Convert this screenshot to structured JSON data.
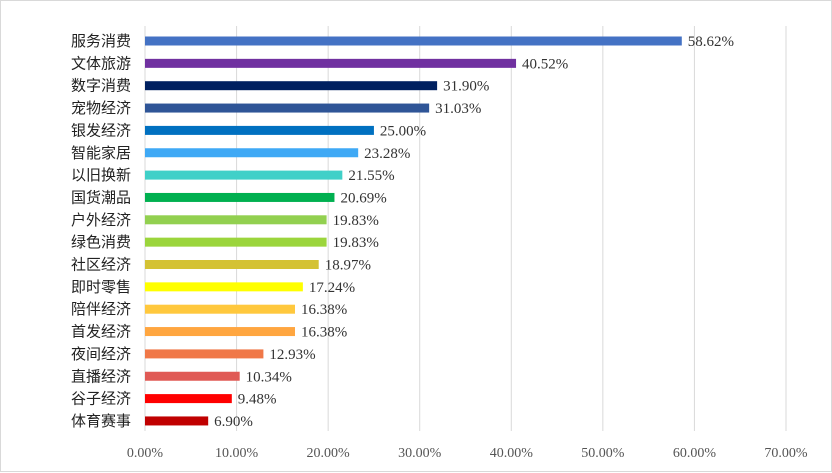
{
  "chart_data": {
    "type": "bar",
    "orientation": "horizontal",
    "title": "",
    "xlabel": "",
    "ylabel": "",
    "xlim": [
      0,
      70
    ],
    "grid": true,
    "legend": "none",
    "ticks": [
      {
        "value": 0,
        "label": "0.00%"
      },
      {
        "value": 10,
        "label": "10.00%"
      },
      {
        "value": 20,
        "label": "20.00%"
      },
      {
        "value": 30,
        "label": "30.00%"
      },
      {
        "value": 40,
        "label": "40.00%"
      },
      {
        "value": 50,
        "label": "50.00%"
      },
      {
        "value": 60,
        "label": "60.00%"
      },
      {
        "value": 70,
        "label": "70.00%"
      }
    ],
    "categories": [
      "服务消费",
      "文体旅游",
      "数字消费",
      "宠物经济",
      "银发经济",
      "智能家居",
      "以旧换新",
      "国货潮品",
      "户外经济",
      "绿色消费",
      "社区经济",
      "即时零售",
      "陪伴经济",
      "首发经济",
      "夜间经济",
      "直播经济",
      "谷子经济",
      "体育赛事"
    ],
    "values": [
      58.62,
      40.52,
      31.9,
      31.03,
      25.0,
      23.28,
      21.55,
      20.69,
      19.83,
      19.83,
      18.97,
      17.24,
      16.38,
      16.38,
      12.93,
      10.34,
      9.48,
      6.9
    ],
    "value_labels": [
      "58.62%",
      "40.52%",
      "31.90%",
      "31.03%",
      "25.00%",
      "23.28%",
      "21.55%",
      "20.69%",
      "19.83%",
      "19.83%",
      "18.97%",
      "17.24%",
      "16.38%",
      "16.38%",
      "12.93%",
      "10.34%",
      "9.48%",
      "6.90%"
    ],
    "colors": [
      "#4472C4",
      "#7030A0",
      "#002060",
      "#2F5597",
      "#0070C0",
      "#3FA9F5",
      "#40D0C8",
      "#00B050",
      "#92D050",
      "#9BD53C",
      "#D4C234",
      "#FFFF00",
      "#FFC83D",
      "#FFA640",
      "#F07848",
      "#E05A55",
      "#FF0000",
      "#C00000"
    ]
  }
}
